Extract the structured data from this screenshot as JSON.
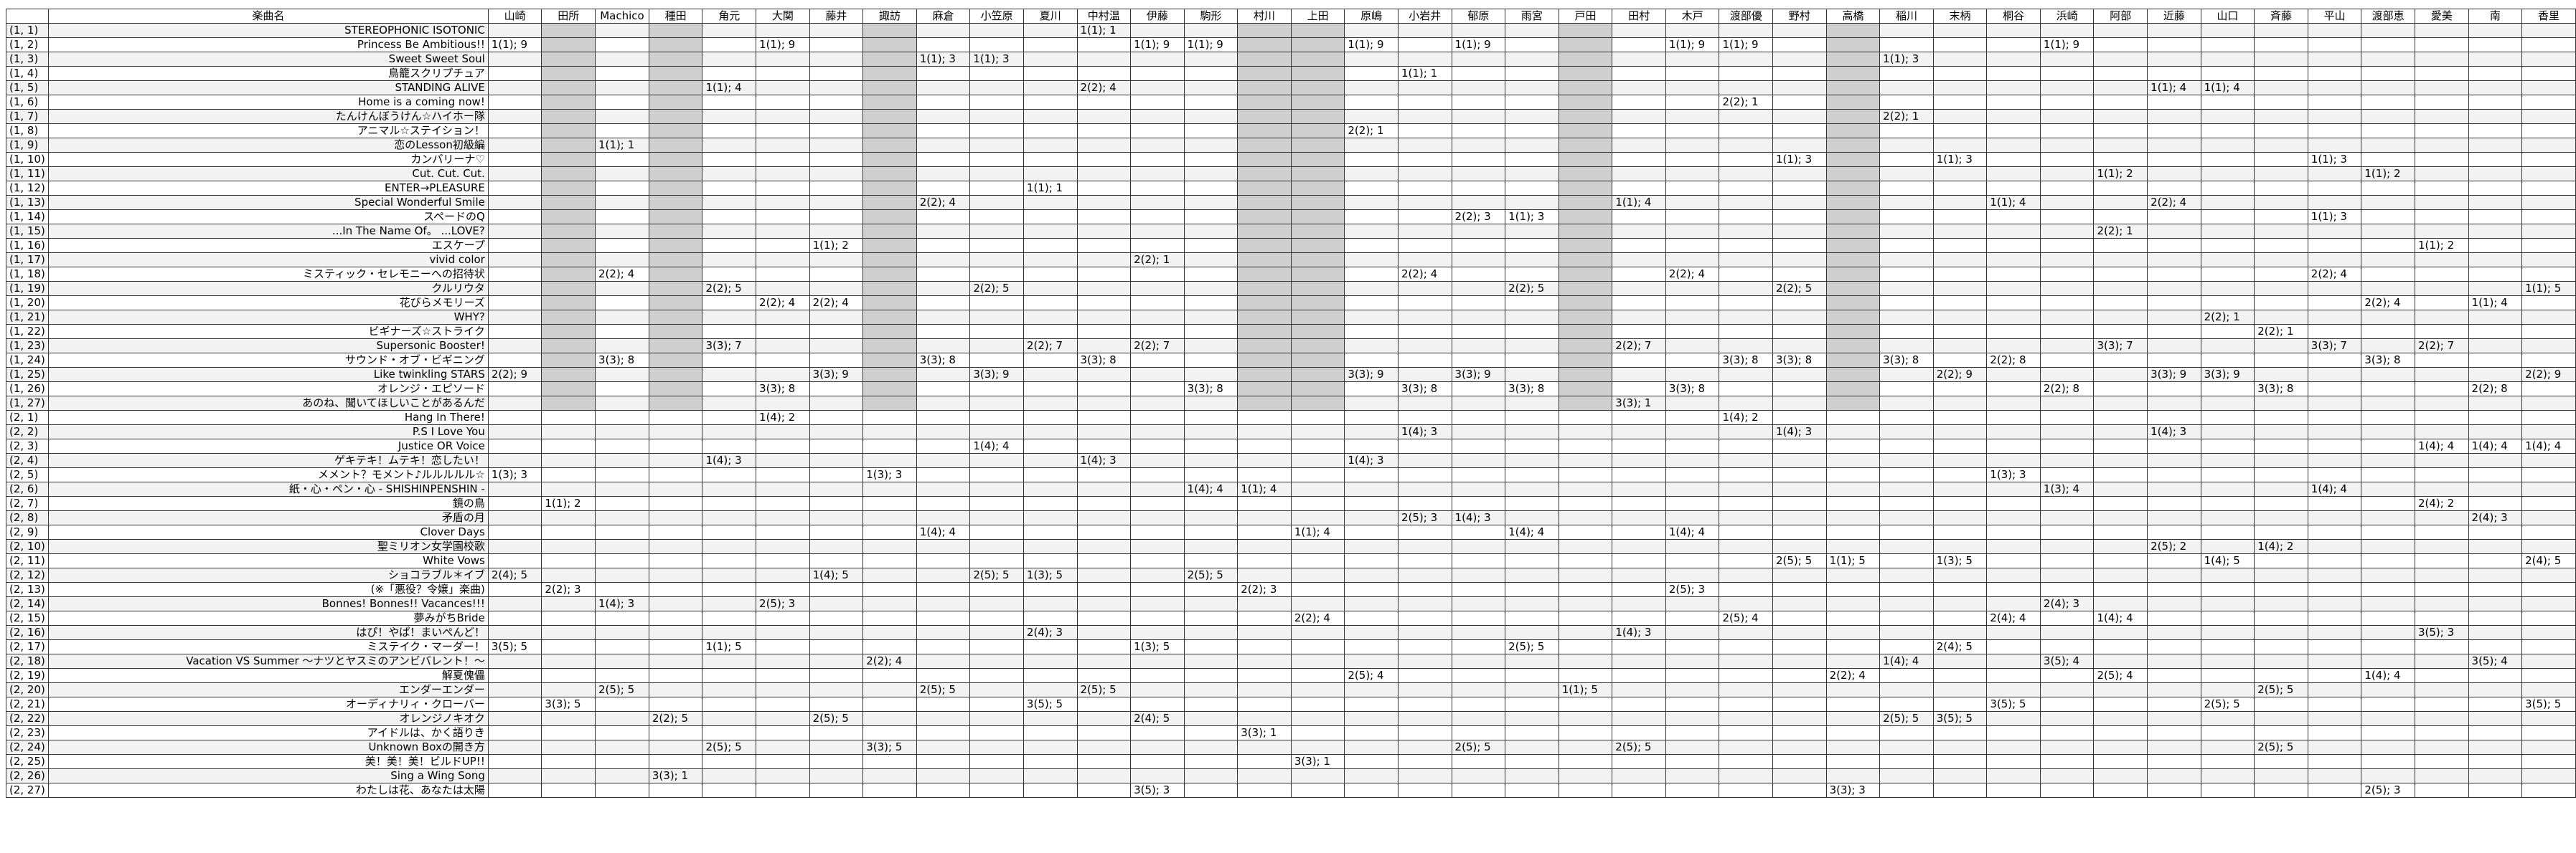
{
  "table": {
    "header_title": "楽曲名",
    "members": [
      "山崎",
      "田所",
      "Machico",
      "種田",
      "角元",
      "大関",
      "藤井",
      "諏訪",
      "麻倉",
      "小笠原",
      "夏川",
      "中村温",
      "伊藤",
      "駒形",
      "村川",
      "上田",
      "原嶋",
      "小岩井",
      "郁原",
      "雨宮",
      "戸田",
      "田村",
      "木戸",
      "渡部優",
      "野村",
      "高橋",
      "稲川",
      "末柄",
      "桐谷",
      "浜崎",
      "阿部",
      "近藤",
      "山口",
      "斉藤",
      "平山",
      "渡部恵",
      "愛美",
      "南",
      "香里"
    ],
    "shaded_columns": [
      1,
      3,
      7,
      14,
      15,
      20,
      25
    ],
    "rows": [
      {
        "id": "(1, 1)",
        "song": "STEREOPHONIC ISOTONIC",
        "cells": {
          "中村温": "1(1); 1"
        }
      },
      {
        "id": "(1, 2)",
        "song": "Princess Be Ambitious!!",
        "cells": {
          "山崎": "1(1); 9",
          "大関": "1(1); 9",
          "伊藤": "1(1); 9",
          "駒形": "1(1); 9",
          "原嶋": "1(1); 9",
          "郁原": "1(1); 9",
          "木戸": "1(1); 9",
          "渡部優": "1(1); 9",
          "浜崎": "1(1); 9"
        }
      },
      {
        "id": "(1, 3)",
        "song": "Sweet Sweet Soul",
        "cells": {
          "麻倉": "1(1); 3",
          "小笠原": "1(1); 3",
          "稲川": "1(1); 3"
        }
      },
      {
        "id": "(1, 4)",
        "song": "鳥籠スクリプチュア",
        "cells": {
          "小岩井": "1(1); 1"
        }
      },
      {
        "id": "(1, 5)",
        "song": "STANDING ALIVE",
        "cells": {
          "角元": "1(1); 4",
          "中村温": "2(2); 4",
          "近藤": "1(1); 4",
          "山口": "1(1); 4"
        }
      },
      {
        "id": "(1, 6)",
        "song": "Home is a coming now!",
        "cells": {
          "渡部優": "2(2); 1"
        }
      },
      {
        "id": "(1, 7)",
        "song": "たんけんぼうけん☆ハイホー隊",
        "cells": {
          "稲川": "2(2); 1"
        }
      },
      {
        "id": "(1, 8)",
        "song": "アニマル☆ステイション！",
        "cells": {
          "原嶋": "2(2); 1"
        }
      },
      {
        "id": "(1, 9)",
        "song": "恋のLesson初級編",
        "cells": {
          "Machico": "1(1); 1"
        }
      },
      {
        "id": "(1, 10)",
        "song": "カンパリーナ♡",
        "cells": {
          "野村": "1(1); 3",
          "末柄": "1(1); 3",
          "平山": "1(1); 3"
        }
      },
      {
        "id": "(1, 11)",
        "song": "Cut. Cut. Cut.",
        "cells": {
          "阿部": "1(1); 2",
          "渡部恵": "1(1); 2"
        }
      },
      {
        "id": "(1, 12)",
        "song": "ENTER→PLEASURE",
        "cells": {
          "夏川": "1(1); 1"
        }
      },
      {
        "id": "(1, 13)",
        "song": "Special Wonderful Smile",
        "cells": {
          "麻倉": "2(2); 4",
          "田村": "1(1); 4",
          "桐谷": "1(1); 4",
          "近藤": "2(2); 4"
        }
      },
      {
        "id": "(1, 14)",
        "song": "スペードのQ",
        "cells": {
          "郁原": "2(2); 3",
          "雨宮": "1(1); 3",
          "平山": "1(1); 3"
        }
      },
      {
        "id": "(1, 15)",
        "song": "...In The Name Of。 ...LOVE?",
        "cells": {
          "阿部": "2(2); 1"
        }
      },
      {
        "id": "(1, 16)",
        "song": "エスケープ",
        "cells": {
          "藤井": "1(1); 2",
          "愛美": "1(1); 2"
        }
      },
      {
        "id": "(1, 17)",
        "song": "vivid color",
        "cells": {
          "伊藤": "2(2); 1"
        }
      },
      {
        "id": "(1, 18)",
        "song": "ミスティック・セレモニーへの招待状",
        "cells": {
          "Machico": "2(2); 4",
          "小岩井": "2(2); 4",
          "木戸": "2(2); 4",
          "平山": "2(2); 4"
        }
      },
      {
        "id": "(1, 19)",
        "song": "クルリウタ",
        "cells": {
          "角元": "2(2); 5",
          "小笠原": "2(2); 5",
          "雨宮": "2(2); 5",
          "野村": "2(2); 5",
          "香里": "1(1); 5"
        }
      },
      {
        "id": "(1, 20)",
        "song": "花びらメモリーズ",
        "cells": {
          "大関": "2(2); 4",
          "藤井": "2(2); 4",
          "渡部恵": "2(2); 4",
          "南": "1(1); 4"
        }
      },
      {
        "id": "(1, 21)",
        "song": "WHY?",
        "cells": {
          "山口": "2(2); 1"
        }
      },
      {
        "id": "(1, 22)",
        "song": "ビギナーズ☆ストライク",
        "cells": {
          "斉藤": "2(2); 1"
        }
      },
      {
        "id": "(1, 23)",
        "song": "Supersonic Booster!",
        "cells": {
          "角元": "3(3); 7",
          "夏川": "2(2); 7",
          "伊藤": "2(2); 7",
          "田村": "2(2); 7",
          "阿部": "3(3); 7",
          "平山": "3(3); 7",
          "愛美": "2(2); 7"
        }
      },
      {
        "id": "(1, 24)",
        "song": "サウンド・オブ・ビギニング",
        "cells": {
          "Machico": "3(3); 8",
          "麻倉": "3(3); 8",
          "中村温": "3(3); 8",
          "渡部優": "3(3); 8",
          "野村": "3(3); 8",
          "稲川": "3(3); 8",
          "桐谷": "2(2); 8",
          "渡部恵": "3(3); 8"
        }
      },
      {
        "id": "(1, 25)",
        "song": "Like twinkling STARS",
        "cells": {
          "山崎": "2(2); 9",
          "藤井": "3(3); 9",
          "小笠原": "3(3); 9",
          "原嶋": "3(3); 9",
          "郁原": "3(3); 9",
          "末柄": "2(2); 9",
          "近藤": "3(3); 9",
          "山口": "3(3); 9",
          "香里": "2(2); 9"
        }
      },
      {
        "id": "(1, 26)",
        "song": "オレンジ・エピソード",
        "cells": {
          "大関": "3(3); 8",
          "駒形": "3(3); 8",
          "小岩井": "3(3); 8",
          "雨宮": "3(3); 8",
          "木戸": "3(3); 8",
          "浜崎": "2(2); 8",
          "斉藤": "3(3); 8",
          "南": "2(2); 8"
        }
      },
      {
        "id": "(1, 27)",
        "song": "あのね、聞いてほしいことがあるんだ",
        "cells": {
          "田村": "3(3); 1"
        }
      },
      {
        "id": "(2, 1)",
        "song": "Hang In There!",
        "cells": {
          "大関": "1(4); 2",
          "渡部優": "1(4); 2"
        }
      },
      {
        "id": "(2, 2)",
        "song": "P.S I Love You",
        "cells": {
          "小岩井": "1(4); 3",
          "野村": "1(4); 3",
          "近藤": "1(4); 3"
        }
      },
      {
        "id": "(2, 3)",
        "song": "Justice OR Voice",
        "cells": {
          "小笠原": "1(4); 4",
          "愛美": "1(4); 4",
          "南": "1(4); 4",
          "香里": "1(4); 4"
        }
      },
      {
        "id": "(2, 4)",
        "song": "ゲキテキ！ムテキ！恋したい！",
        "cells": {
          "角元": "1(4); 3",
          "中村温": "1(4); 3",
          "原嶋": "1(4); 3"
        }
      },
      {
        "id": "(2, 5)",
        "song": "メメント？モメント♪ルルルルル☆",
        "cells": {
          "山崎": "1(3); 3",
          "諏訪": "1(3); 3",
          "桐谷": "1(3); 3"
        }
      },
      {
        "id": "(2, 6)",
        "song": "紙・心・ペン・心 - SHISHINPENSHIN -",
        "cells": {
          "駒形": "1(4); 4",
          "村川": "1(1); 4",
          "浜崎": "1(3); 4",
          "平山": "1(4); 4"
        }
      },
      {
        "id": "(2, 7)",
        "song": "鏡の鳥",
        "cells": {
          "田所": "1(1); 2",
          "愛美": "2(4); 2"
        }
      },
      {
        "id": "(2, 8)",
        "song": "矛盾の月",
        "cells": {
          "小岩井": "2(5); 3",
          "郁原": "1(4); 3",
          "南": "2(4); 3"
        }
      },
      {
        "id": "(2, 9)",
        "song": "Clover Days",
        "cells": {
          "麻倉": "1(4); 4",
          "上田": "1(1); 4",
          "雨宮": "1(4); 4",
          "木戸": "1(4); 4"
        }
      },
      {
        "id": "(2, 10)",
        "song": "聖ミリオン女学園校歌",
        "cells": {
          "近藤": "2(5); 2",
          "斉藤": "1(4); 2"
        }
      },
      {
        "id": "(2, 11)",
        "song": "White Vows",
        "cells": {
          "野村": "2(5); 5",
          "高橋": "1(1); 5",
          "末柄": "1(3); 5",
          "山口": "1(4); 5",
          "香里": "2(4); 5"
        }
      },
      {
        "id": "(2, 12)",
        "song": "ショコラブル＊イブ",
        "cells": {
          "山崎": "2(4); 5",
          "藤井": "1(4); 5",
          "小笠原": "2(5); 5",
          "夏川": "1(3); 5",
          "駒形": "2(5); 5"
        }
      },
      {
        "id": "(2, 13)",
        "song": "(※「悪役？令嬢」楽曲)",
        "cells": {
          "田所": "2(2); 3",
          "村川": "2(2); 3",
          "木戸": "2(5); 3"
        }
      },
      {
        "id": "(2, 14)",
        "song": "Bonnes! Bonnes!! Vacances!!!",
        "cells": {
          "Machico": "1(4); 3",
          "大関": "2(5); 3",
          "浜崎": "2(4); 3"
        }
      },
      {
        "id": "(2, 15)",
        "song": "夢みがちBride",
        "cells": {
          "上田": "2(2); 4",
          "渡部優": "2(5); 4",
          "桐谷": "2(4); 4",
          "阿部": "1(4); 4"
        }
      },
      {
        "id": "(2, 16)",
        "song": "はぴ！やぱ！まいぺんど！",
        "cells": {
          "夏川": "2(4); 3",
          "田村": "1(4); 3",
          "愛美": "3(5); 3"
        }
      },
      {
        "id": "(2, 17)",
        "song": "ミステイク・マーダー！",
        "cells": {
          "山崎": "3(5); 5",
          "角元": "1(1); 5",
          "伊藤": "1(3); 5",
          "雨宮": "2(5); 5",
          "末柄": "2(4); 5"
        }
      },
      {
        "id": "(2, 18)",
        "song": "Vacation VS Summer 〜ナツとヤスミのアンビバレント！〜",
        "cells": {
          "諏訪": "2(2); 4",
          "稲川": "1(4); 4",
          "浜崎": "3(5); 4",
          "南": "3(5); 4"
        }
      },
      {
        "id": "(2, 19)",
        "song": "解夏傀儡",
        "cells": {
          "原嶋": "2(5); 4",
          "高橋": "2(2); 4",
          "阿部": "2(5); 4",
          "渡部恵": "1(4); 4"
        }
      },
      {
        "id": "(2, 20)",
        "song": "エンダーエンダー",
        "cells": {
          "Machico": "2(5); 5",
          "麻倉": "2(5); 5",
          "中村温": "2(5); 5",
          "戸田": "1(1); 5",
          "斉藤": "2(5); 5"
        }
      },
      {
        "id": "(2, 21)",
        "song": "オーディナリィ・クローバー",
        "cells": {
          "田所": "3(3); 5",
          "夏川": "3(5); 5",
          "桐谷": "3(5); 5",
          "山口": "2(5); 5",
          "香里": "3(5); 5"
        }
      },
      {
        "id": "(2, 22)",
        "song": "オレンジノキオク",
        "cells": {
          "種田": "2(2); 5",
          "藤井": "2(5); 5",
          "伊藤": "2(4); 5",
          "稲川": "2(5); 5",
          "末柄": "3(5); 5"
        }
      },
      {
        "id": "(2, 23)",
        "song": "アイドルは、かく語りき",
        "cells": {
          "村川": "3(3); 1"
        }
      },
      {
        "id": "(2, 24)",
        "song": "Unknown Boxの開き方",
        "cells": {
          "角元": "2(5); 5",
          "諏訪": "3(3); 5",
          "郁原": "2(5); 5",
          "田村": "2(5); 5",
          "斉藤": "2(5); 5"
        }
      },
      {
        "id": "(2, 25)",
        "song": "美！美！美！ビルドUP!!",
        "cells": {
          "上田": "3(3); 1"
        }
      },
      {
        "id": "(2, 26)",
        "song": "Sing a Wing Song",
        "cells": {
          "種田": "3(3); 1"
        }
      },
      {
        "id": "(2, 27)",
        "song": "わたしは花、あなたは太陽",
        "cells": {
          "伊藤": "3(5); 3",
          "高橋": "3(3); 3",
          "渡部恵": "2(5); 3"
        }
      }
    ]
  }
}
